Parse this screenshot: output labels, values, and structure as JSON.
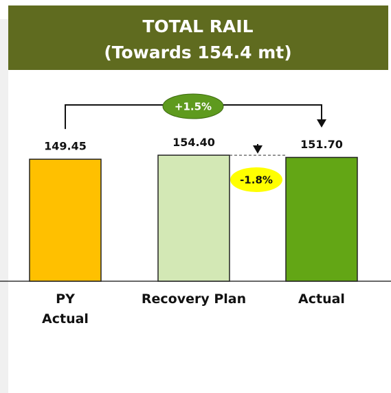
{
  "chart_data": {
    "type": "bar",
    "title": "TOTAL RAIL",
    "subtitle": "(Towards 154.4 mt)",
    "categories": [
      "PY\nActual",
      "Recovery Plan",
      "Actual"
    ],
    "values": [
      149.45,
      154.4,
      151.7
    ],
    "value_labels": [
      "149.45",
      "154.40",
      "151.70"
    ],
    "colors": [
      "#ffc000",
      "#d3e8b5",
      "#63a615"
    ],
    "annotations": [
      "+1.5%",
      "-1.8%"
    ],
    "ylim": [
      0,
      200
    ]
  }
}
